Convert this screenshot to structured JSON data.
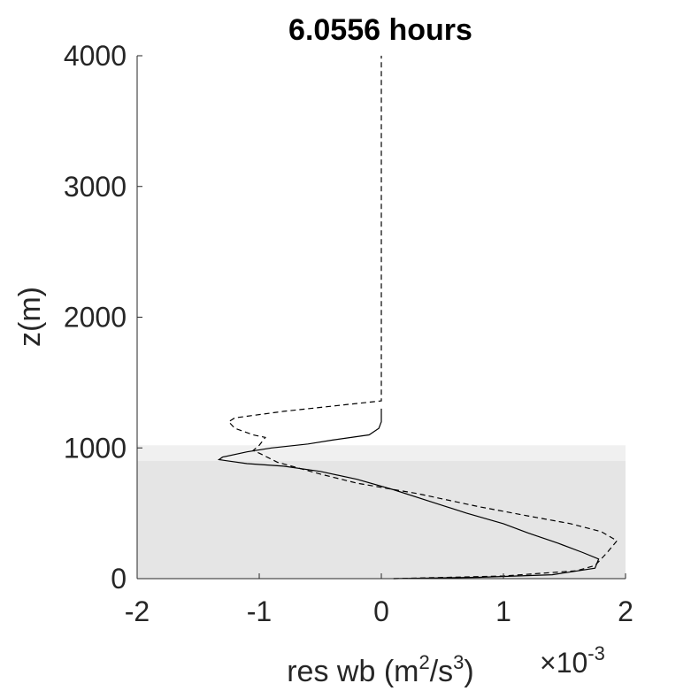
{
  "chart_data": {
    "type": "line",
    "title": "6.0556 hours",
    "xlabel": {
      "base": "res wb (m",
      "sup1": "2",
      "mid": "/s",
      "sup2": "3",
      "end": ")"
    },
    "ylabel": "z(m)",
    "x_exponent": {
      "prefix": "×10",
      "power": "-3"
    },
    "xlim": [
      -2,
      2
    ],
    "ylim": [
      0,
      4000
    ],
    "xticks": [
      -2,
      -1,
      0,
      1,
      2
    ],
    "xtick_labels": [
      "-2",
      "-1",
      "0",
      "1",
      "2"
    ],
    "yticks": [
      0,
      1000,
      2000,
      3000,
      4000
    ],
    "ytick_labels": [
      "0",
      "1000",
      "2000",
      "3000",
      "4000"
    ],
    "grid": false,
    "shaded_bands": [
      {
        "y0": 0,
        "y1": 900,
        "color": "#e5e5e5"
      },
      {
        "y0": 900,
        "y1": 1020,
        "color": "#f0f0f0"
      }
    ],
    "series": [
      {
        "style": "solid",
        "color": "#000000",
        "points": [
          [
            0.1,
            0
          ],
          [
            0.8,
            10
          ],
          [
            1.4,
            30
          ],
          [
            1.75,
            80
          ],
          [
            1.78,
            150
          ],
          [
            1.65,
            200
          ],
          [
            1.45,
            270
          ],
          [
            1.2,
            350
          ],
          [
            1.0,
            420
          ],
          [
            0.7,
            500
          ],
          [
            0.4,
            590
          ],
          [
            0.1,
            680
          ],
          [
            -0.2,
            760
          ],
          [
            -0.5,
            820
          ],
          [
            -0.8,
            860
          ],
          [
            -1.1,
            880
          ],
          [
            -1.33,
            910
          ],
          [
            -1.3,
            930
          ],
          [
            -1.1,
            970
          ],
          [
            -0.9,
            1000
          ],
          [
            -0.6,
            1030
          ],
          [
            -0.4,
            1060
          ],
          [
            -0.1,
            1100
          ],
          [
            -0.02,
            1150
          ],
          [
            0,
            1200
          ],
          [
            0,
            1300
          ]
        ]
      },
      {
        "style": "dashed",
        "color": "#000000",
        "points": [
          [
            0.1,
            0
          ],
          [
            1.0,
            20
          ],
          [
            1.6,
            60
          ],
          [
            1.75,
            100
          ],
          [
            1.85,
            200
          ],
          [
            1.93,
            290
          ],
          [
            1.8,
            360
          ],
          [
            1.55,
            420
          ],
          [
            1.2,
            480
          ],
          [
            0.8,
            550
          ],
          [
            0.3,
            650
          ],
          [
            -0.2,
            730
          ],
          [
            -0.5,
            800
          ],
          [
            -0.85,
            890
          ],
          [
            -1.0,
            960
          ],
          [
            -1.05,
            980
          ],
          [
            -1.0,
            1020
          ],
          [
            -0.95,
            1080
          ],
          [
            -1.05,
            1100
          ],
          [
            -1.2,
            1150
          ],
          [
            -1.25,
            1200
          ],
          [
            -1.2,
            1230
          ],
          [
            -0.8,
            1280
          ],
          [
            -0.3,
            1330
          ],
          [
            0,
            1360
          ],
          [
            0,
            1800
          ],
          [
            0,
            2500
          ],
          [
            0,
            3200
          ],
          [
            0,
            4000
          ]
        ]
      }
    ]
  }
}
